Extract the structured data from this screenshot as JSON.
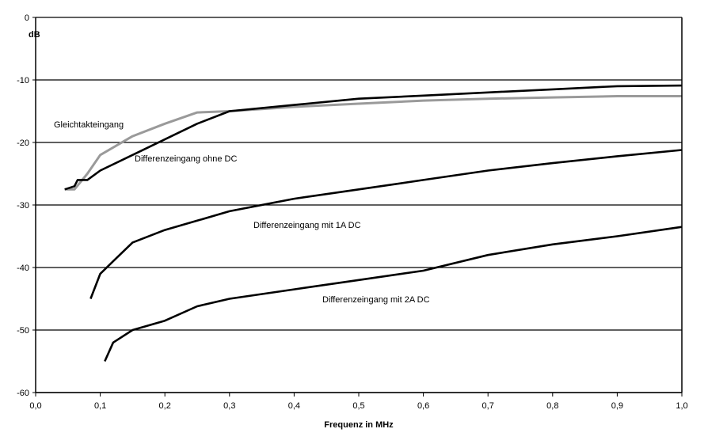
{
  "chart_data": {
    "type": "line",
    "title": "",
    "xlabel": "Frequenz in MHz",
    "ylabel": "dB",
    "xlim": [
      0,
      1
    ],
    "ylim": [
      -60,
      0
    ],
    "x_ticks": [
      "0,0",
      "0,1",
      "0,2",
      "0,3",
      "0,4",
      "0,5",
      "0,6",
      "0,7",
      "0,8",
      "0,9",
      "1,0"
    ],
    "y_ticks": [
      "0",
      "-10",
      "-20",
      "-30",
      "-40",
      "-50",
      "-60"
    ],
    "grid": "horizontal",
    "legend": "none (inline labels)",
    "series": [
      {
        "name": "Gleichtakteingang",
        "color": "#9a9a9a",
        "x": [
          0.045,
          0.06,
          0.08,
          0.1,
          0.15,
          0.2,
          0.25,
          0.3,
          0.4,
          0.5,
          0.6,
          0.7,
          0.8,
          0.9,
          1.0
        ],
        "y": [
          -27.5,
          -27.5,
          -25,
          -22,
          -19,
          -17,
          -15.2,
          -15,
          -14.3,
          -13.8,
          -13.3,
          -13,
          -12.8,
          -12.6,
          -12.6
        ]
      },
      {
        "name": "Differenzeingang ohne DC",
        "color": "#000000",
        "x": [
          0.045,
          0.06,
          0.065,
          0.08,
          0.1,
          0.15,
          0.2,
          0.25,
          0.3,
          0.4,
          0.5,
          0.6,
          0.7,
          0.8,
          0.9,
          1.0
        ],
        "y": [
          -27.5,
          -27,
          -26,
          -26,
          -24.5,
          -22,
          -19.5,
          -17,
          -15,
          -14,
          -13,
          -12.5,
          -12,
          -11.5,
          -11,
          -10.9
        ]
      },
      {
        "name": "Differenzeingang mit 1A DC",
        "color": "#000000",
        "x": [
          0.085,
          0.1,
          0.12,
          0.15,
          0.2,
          0.25,
          0.3,
          0.4,
          0.5,
          0.6,
          0.7,
          0.8,
          0.9,
          1.0
        ],
        "y": [
          -45,
          -41,
          -39,
          -36,
          -34,
          -32.5,
          -31,
          -29,
          -27.5,
          -26,
          -24.5,
          -23.3,
          -22.2,
          -21.2
        ]
      },
      {
        "name": "Differenzeingang mit 2A DC",
        "color": "#000000",
        "x": [
          0.107,
          0.12,
          0.15,
          0.2,
          0.25,
          0.3,
          0.4,
          0.5,
          0.6,
          0.7,
          0.8,
          0.9,
          1.0
        ],
        "y": [
          -55,
          -52,
          -50,
          -48.5,
          -46.2,
          -45,
          -43.5,
          -42,
          -40.5,
          -38,
          -36.3,
          -35,
          -33.5
        ]
      }
    ]
  }
}
